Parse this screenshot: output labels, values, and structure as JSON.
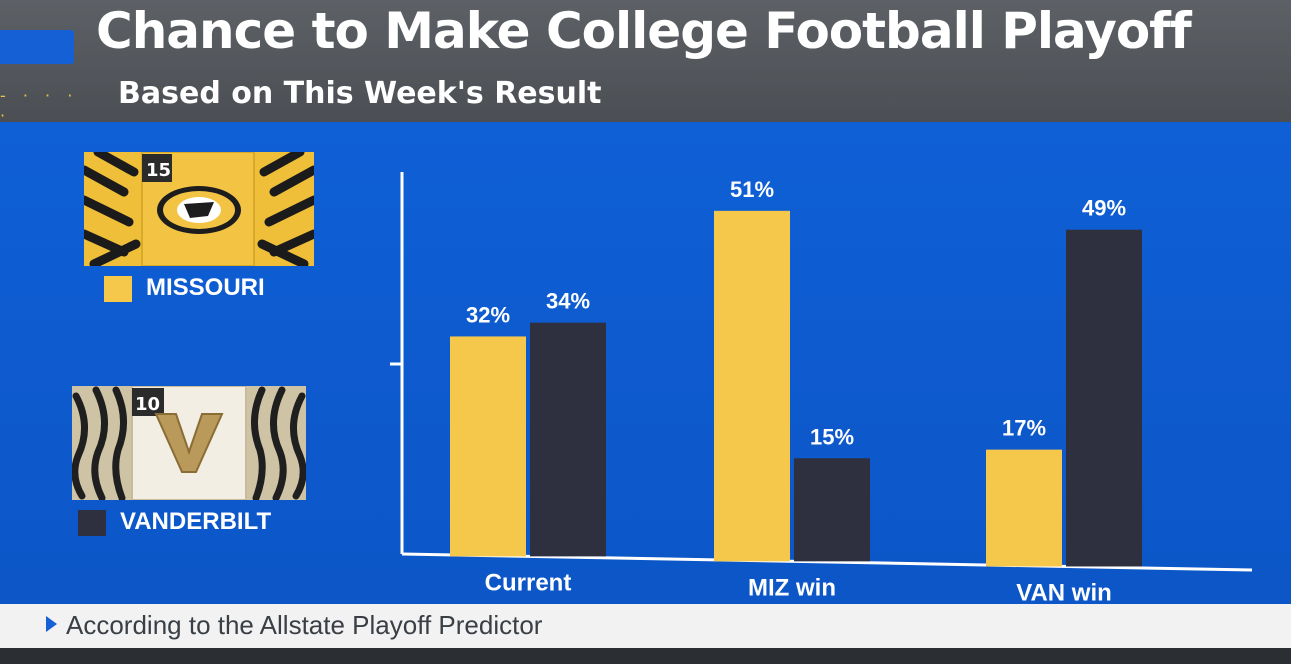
{
  "header": {
    "title": "Chance to Make College Football Playoff",
    "subtitle": "Based on This Week's Result"
  },
  "teams": [
    {
      "name": "MISSOURI",
      "rank": "15",
      "color": "#f5c84c",
      "logo": "missouri-tiger-icon"
    },
    {
      "name": "VANDERBILT",
      "rank": "10",
      "color": "#2e3040",
      "logo": "vanderbilt-v-icon"
    }
  ],
  "chart_data": {
    "type": "bar",
    "title": "Chance to Make College Football Playoff",
    "subtitle": "Based on This Week's Result",
    "categories": [
      "Current",
      "MIZ win",
      "VAN win"
    ],
    "series": [
      {
        "name": "MISSOURI",
        "color": "#f5c84c",
        "values": [
          32,
          51,
          17
        ],
        "labels": [
          "32%",
          "51%",
          "17%"
        ]
      },
      {
        "name": "VANDERBILT",
        "color": "#2e3040",
        "values": [
          34,
          15,
          49
        ],
        "labels": [
          "34%",
          "15%",
          "49%"
        ]
      }
    ],
    "ylim": [
      0,
      55
    ],
    "grid": false,
    "legend_position": "left"
  },
  "footer": {
    "text": "According to the Allstate Playoff Predictor"
  }
}
